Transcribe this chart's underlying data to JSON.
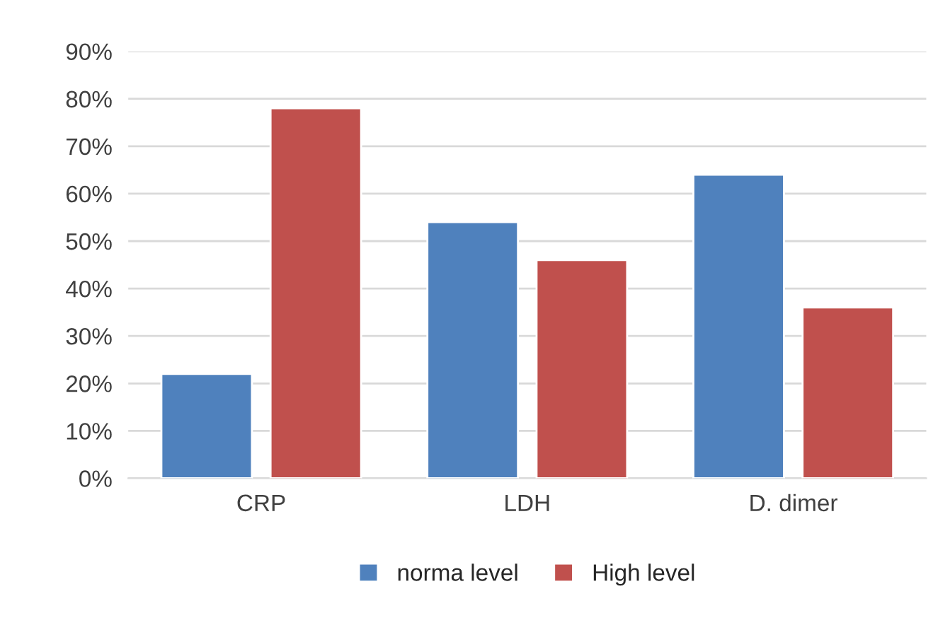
{
  "chart_data": {
    "type": "bar",
    "categories": [
      "CRP",
      "LDH",
      "D. dimer"
    ],
    "series": [
      {
        "name": "norma level",
        "color": "#4f81bd",
        "values": [
          22,
          54,
          64
        ]
      },
      {
        "name": "High level",
        "color": "#c0504d",
        "values": [
          78,
          46,
          36
        ]
      }
    ],
    "ylim": [
      0,
      90
    ],
    "yticks": [
      {
        "value": 0,
        "label": "0%"
      },
      {
        "value": 10,
        "label": "10%"
      },
      {
        "value": 20,
        "label": "20%"
      },
      {
        "value": 30,
        "label": "30%"
      },
      {
        "value": 40,
        "label": "40%"
      },
      {
        "value": 50,
        "label": "50%"
      },
      {
        "value": 60,
        "label": "60%"
      },
      {
        "value": 70,
        "label": "70%"
      },
      {
        "value": 80,
        "label": "80%"
      },
      {
        "value": 90,
        "label": "90%"
      }
    ],
    "grid": "y",
    "legend": "bottom"
  }
}
